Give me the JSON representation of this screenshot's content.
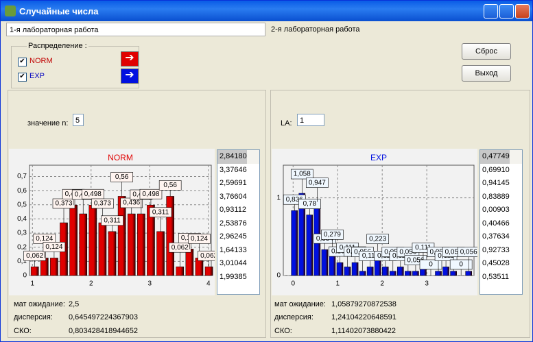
{
  "window": {
    "title": "Случайные числа"
  },
  "tabs": [
    "1-я лабораторная работа",
    "2-я лабораторная работа"
  ],
  "group": {
    "label": "Распределение :",
    "items": [
      "NORM",
      "EXP"
    ]
  },
  "buttons": [
    "Сброс",
    "Выход"
  ],
  "left": {
    "input_label": "значение n:",
    "input_value": "5",
    "list": [
      "2,84180",
      "3,37646",
      "2,59691",
      "3,76604",
      "0,93112",
      "2,53876",
      "2,96245",
      "1,64133",
      "3,01044",
      "1,99385"
    ],
    "stats": [
      {
        "label": "мат ожидание:",
        "value": "2,5"
      },
      {
        "label": "дисперсия:",
        "value": "0,645497224367903"
      },
      {
        "label": "СКО:",
        "value": "0,803428418944652"
      }
    ],
    "chart": {
      "type": "bar",
      "title": "NORM",
      "color": "#e00000",
      "x": [
        1.04,
        1.205,
        1.37,
        1.535,
        1.7,
        1.865,
        2.03,
        2.195,
        2.36,
        2.525,
        2.69,
        2.855,
        3.02,
        3.185,
        3.35,
        3.515,
        3.68,
        3.845,
        4.01
      ],
      "values": [
        0.062,
        0.124,
        0.124,
        0.373,
        0.498,
        0.436,
        0.498,
        0.373,
        0.311,
        0.56,
        0.436,
        0.436,
        0.498,
        0.311,
        0.56,
        0.062,
        0.187,
        0.124,
        0.062
      ],
      "value_labels": [
        "0,062",
        "0,124",
        "0,124",
        "0,373",
        "0,498",
        "0,436",
        "0,498",
        "0,373",
        "0,311",
        "0,56",
        "0,436",
        "0,436",
        "0,498",
        "0,311",
        "0,56",
        "0,062",
        "0,187",
        "0,124",
        "0,062"
      ],
      "xlim": [
        0.95,
        4.05
      ],
      "ylim": [
        0,
        0.78
      ],
      "xticks": [
        1,
        2,
        3,
        4
      ],
      "yticks": [
        0,
        {
          "value": 0.1,
          "label": "0,1"
        },
        {
          "value": 0.2,
          "label": "0,2"
        },
        {
          "value": 0.3,
          "label": "0,3"
        },
        {
          "value": 0.4,
          "label": "0,4"
        },
        {
          "value": 0.5,
          "label": "0,5"
        },
        {
          "value": 0.6,
          "label": "0,6"
        },
        {
          "value": 0.7,
          "label": "0,7"
        }
      ]
    }
  },
  "right": {
    "input_label": "LA:",
    "input_value": "1",
    "list": [
      "0,47749",
      "0,69910",
      "0,94145",
      "0,83889",
      "0,00903",
      "0,40466",
      "0,37634",
      "0,92733",
      "0,45028",
      "0,53511"
    ],
    "stats": [
      {
        "label": "мат ожидание:",
        "value": "1,05879270872538"
      },
      {
        "label": "дисперсия:",
        "value": "1,24104220648591"
      },
      {
        "label": "СКО:",
        "value": "1,11402073880422"
      }
    ],
    "chart": {
      "type": "bar",
      "title": "EXP",
      "color": "#0010e0",
      "x": [
        0.03,
        0.2,
        0.37,
        0.54,
        0.71,
        0.88,
        1.05,
        1.22,
        1.39,
        1.56,
        1.73,
        1.9,
        2.07,
        2.24,
        2.41,
        2.58,
        2.75,
        2.92,
        3.09,
        3.26,
        3.43,
        3.6,
        3.77,
        3.94
      ],
      "values": [
        0.836,
        1.058,
        0.78,
        0.947,
        0.334,
        0.279,
        0.167,
        0.111,
        0.167,
        0.056,
        0.111,
        0.223,
        0.111,
        0.056,
        0.111,
        0.056,
        0.056,
        0.111,
        0,
        0.056,
        0.111,
        0.056,
        0,
        0.056
      ],
      "value_labels": [
        "0,836",
        "1,058",
        "0,78",
        "0,947",
        "0,334",
        "0,279",
        "0,167",
        "0,111",
        "0,167",
        "0,056",
        "0,111",
        "0,223",
        "0,111",
        "0,056",
        "0,111",
        "0,056",
        "0,056",
        "0,111",
        "0",
        "0,056",
        "0,111",
        "0,056",
        "0",
        "0,056"
      ],
      "xlim": [
        -0.22,
        4.06
      ],
      "ylim": [
        0,
        1.42
      ],
      "xticks": [
        0,
        1,
        2,
        3
      ],
      "yticks": [
        0,
        1
      ]
    }
  }
}
